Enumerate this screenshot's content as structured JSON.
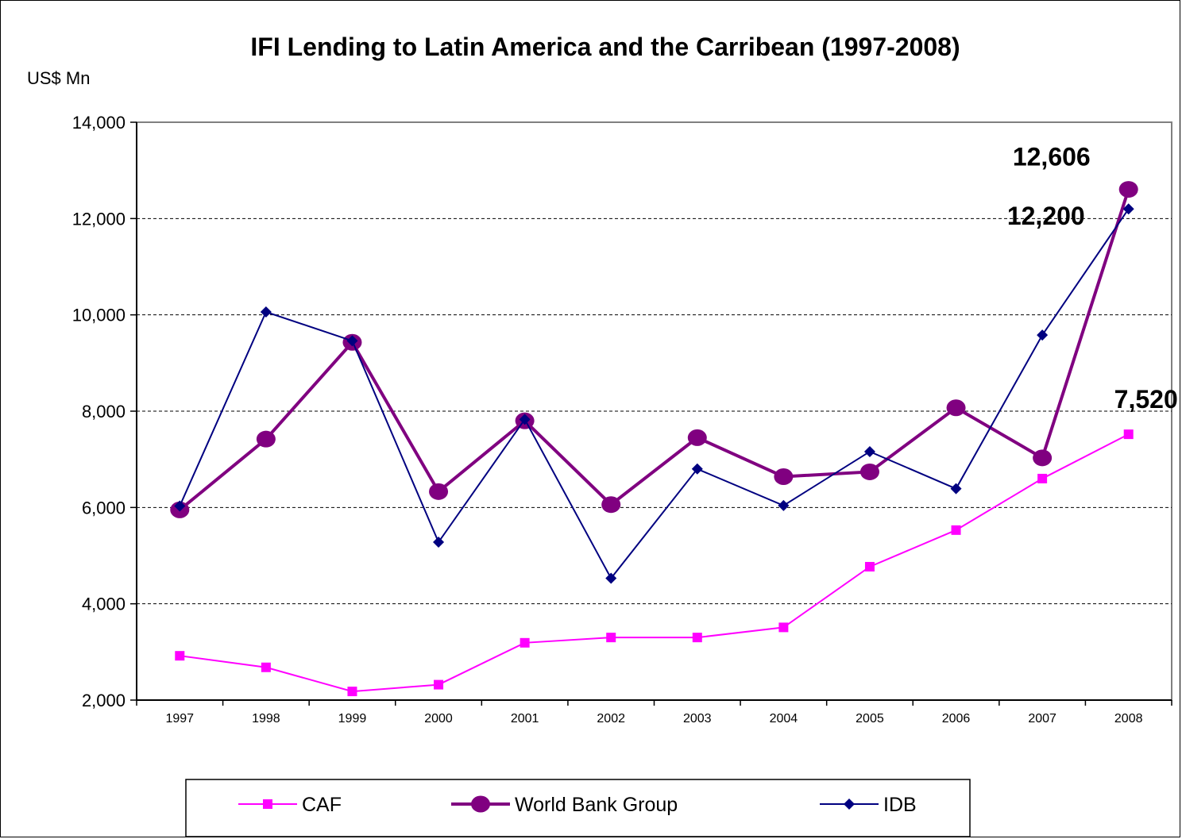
{
  "chart_data": {
    "type": "line",
    "title": "IFI Lending to Latin America and the Carribean (1997-2008)",
    "ylabel": "US$ Mn",
    "xlabel": "",
    "ylim": [
      2000,
      14000
    ],
    "yticks": [
      2000,
      4000,
      6000,
      8000,
      10000,
      12000,
      14000
    ],
    "ytick_labels": [
      "2,000",
      "4,000",
      "6,000",
      "8,000",
      "10,000",
      "12,000",
      "14,000"
    ],
    "categories": [
      "1997",
      "1998",
      "1999",
      "2000",
      "2001",
      "2002",
      "2003",
      "2004",
      "2005",
      "2006",
      "2007",
      "2008"
    ],
    "grid": "horizontal dashed",
    "legend_position": "bottom",
    "series": [
      {
        "name": "CAF",
        "color": "#ff00ff",
        "marker": "square",
        "values": [
          2920,
          2680,
          2180,
          2320,
          3190,
          3300,
          3300,
          3510,
          4770,
          5530,
          6600,
          7520
        ]
      },
      {
        "name": "World Bank Group",
        "color": "#800080",
        "marker": "circle",
        "values": [
          5950,
          7420,
          9430,
          6330,
          7800,
          6060,
          7450,
          6640,
          6740,
          8070,
          7030,
          12606
        ]
      },
      {
        "name": "IDB",
        "color": "#000080",
        "marker": "diamond",
        "values": [
          6030,
          10060,
          9460,
          5280,
          7830,
          4530,
          6800,
          6040,
          7160,
          6390,
          9580,
          12200
        ]
      }
    ],
    "annotations": [
      {
        "text": "12,606",
        "series": "World Bank Group",
        "category": "2008"
      },
      {
        "text": "12,200",
        "series": "IDB",
        "category": "2008"
      },
      {
        "text": "7,520",
        "series": "CAF",
        "category": "2008"
      }
    ]
  }
}
